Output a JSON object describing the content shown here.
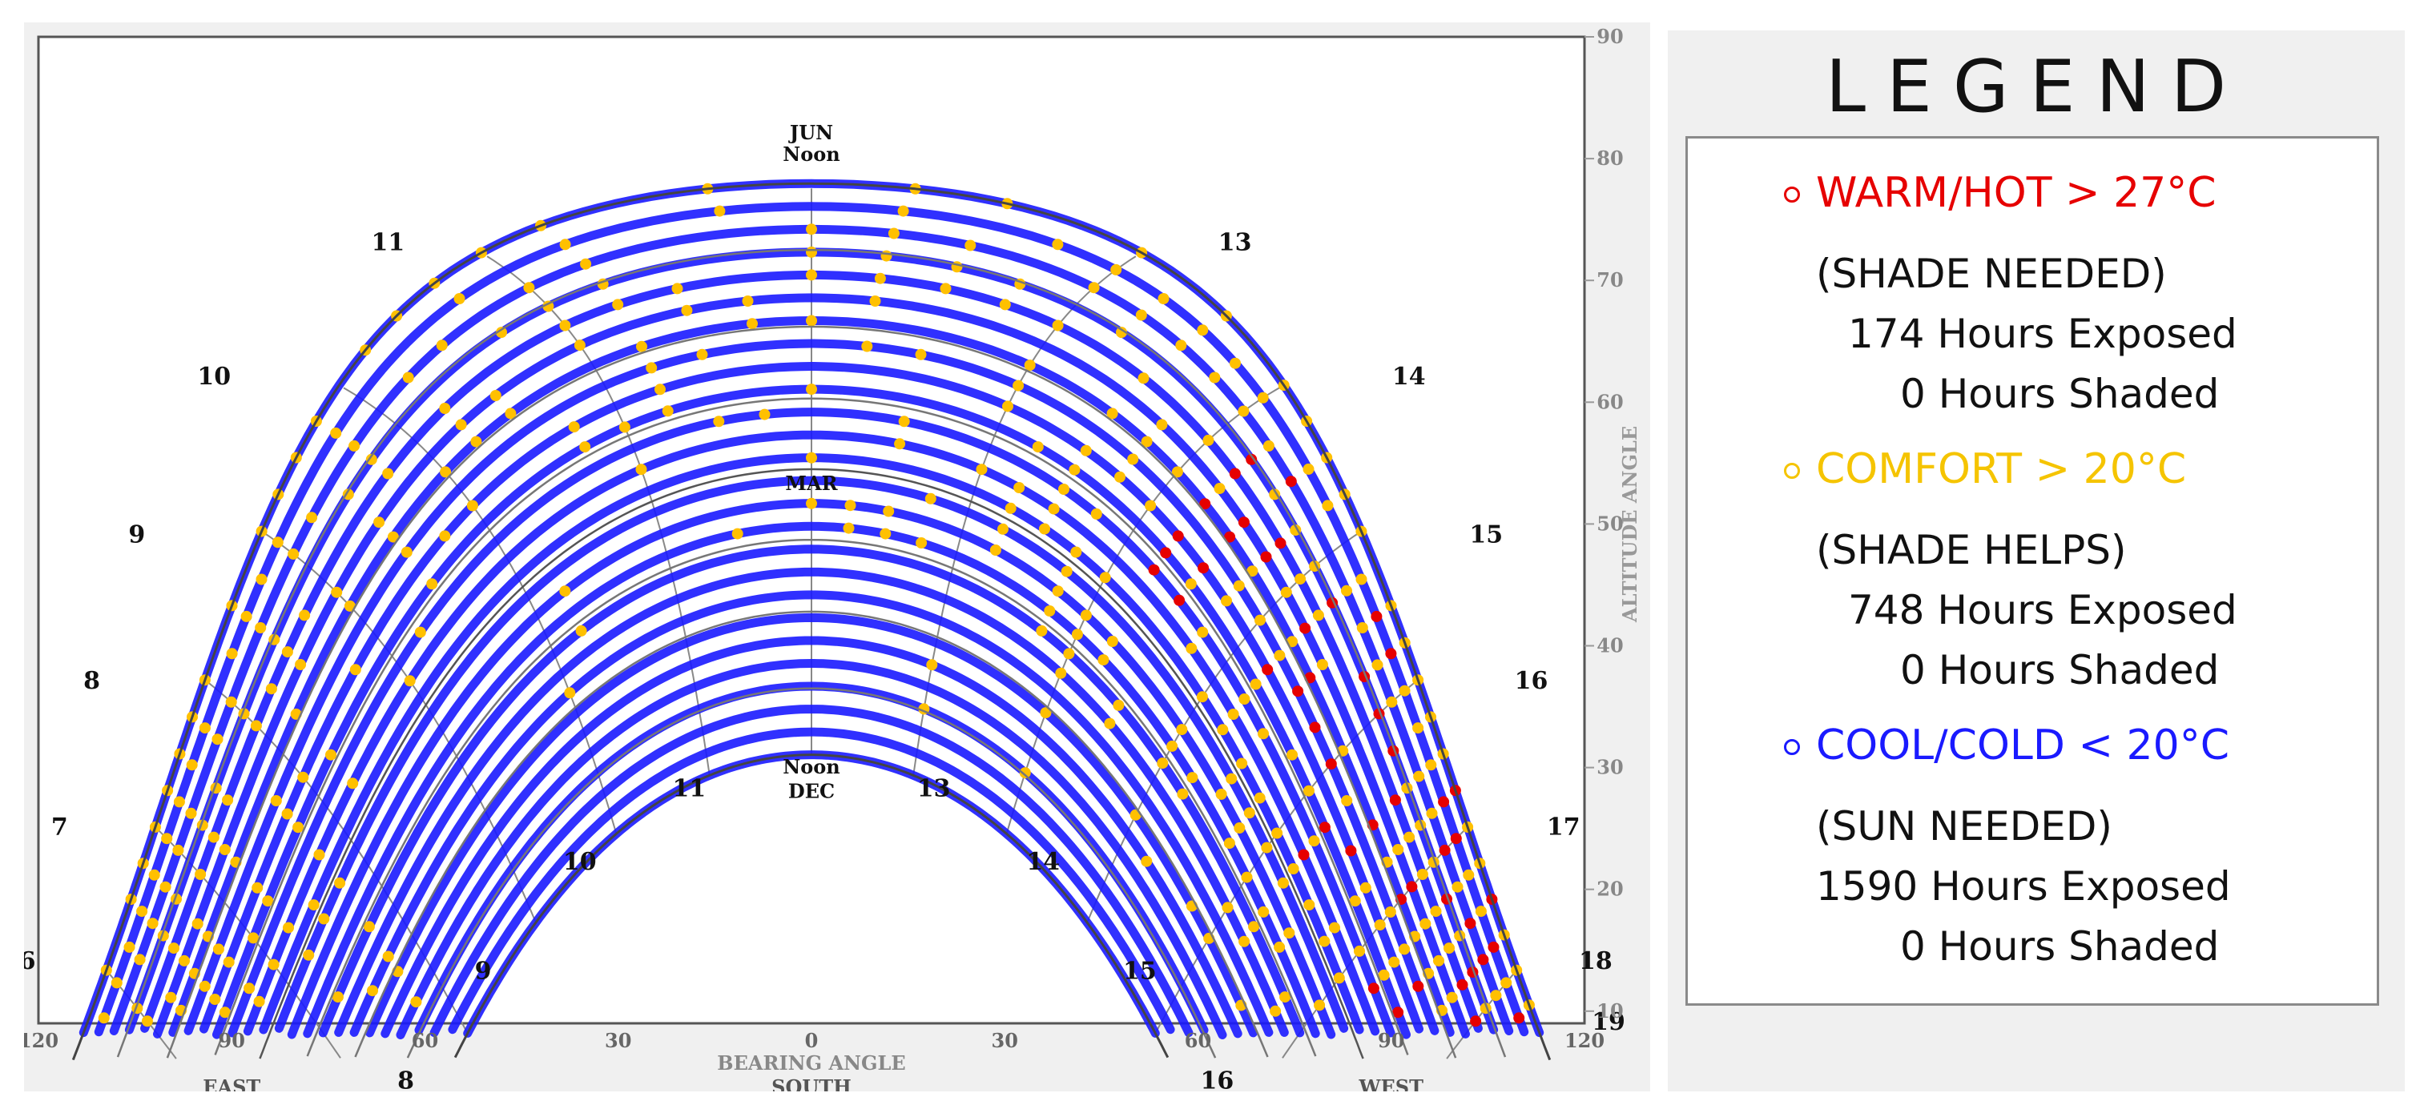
{
  "chart_data": {
    "type": "scatter",
    "title": "",
    "xlabel": "BEARING ANGLE",
    "x_sublabel": "SOUTH",
    "ylabel": "ALTITUDE ANGLE",
    "x_ticks": [
      "120",
      "90",
      "60",
      "30",
      "0",
      "30",
      "60",
      "90",
      "120"
    ],
    "x_tick_values": [
      -120,
      -90,
      -60,
      -30,
      0,
      30,
      60,
      90,
      120
    ],
    "y_ticks": [
      "90",
      "80",
      "70",
      "60",
      "50",
      "40",
      "30",
      "20",
      "10"
    ],
    "xlim": [
      -120,
      120
    ],
    "ylim": [
      9,
      90
    ],
    "direction_labels": {
      "east": "EAST",
      "west": "WEST"
    },
    "date_labels": {
      "jun": "JUN",
      "jun_noon": "Noon",
      "mar": "MAR",
      "dec_noon": "Noon",
      "dec": "DEC"
    },
    "season_curves": [
      {
        "name": "JUN",
        "noon_altitude": 79,
        "sunrise_bearing": -122
      },
      {
        "name": "MAR",
        "noon_altitude": 55,
        "sunrise_bearing": -97
      },
      {
        "name": "DEC",
        "noon_altitude": 31,
        "sunrise_bearing": -64
      }
    ],
    "hour_lines": [
      {
        "hour": "6",
        "jun_pt": [
          -118,
          14
        ],
        "dec_pt": null
      },
      {
        "hour": "7",
        "jun_pt": [
          -113,
          25
        ],
        "dec_pt": null
      },
      {
        "hour": "8",
        "jun_pt": [
          -108,
          37
        ],
        "dec_pt": [
          -58,
          6
        ]
      },
      {
        "hour": "9",
        "jun_pt": [
          -101,
          49
        ],
        "dec_pt": [
          -46,
          15
        ]
      },
      {
        "hour": "10",
        "jun_pt": [
          -89,
          62
        ],
        "dec_pt": [
          -31,
          24
        ]
      },
      {
        "hour": "11",
        "jun_pt": [
          -62,
          73
        ],
        "dec_pt": [
          -14,
          30
        ]
      },
      {
        "hour": "13",
        "jun_pt": [
          62,
          73
        ],
        "dec_pt": [
          14,
          30
        ]
      },
      {
        "hour": "14",
        "jun_pt": [
          89,
          62
        ],
        "dec_pt": [
          31,
          24
        ]
      },
      {
        "hour": "15",
        "jun_pt": [
          101,
          49
        ],
        "dec_pt": [
          46,
          15
        ]
      },
      {
        "hour": "16",
        "jun_pt": [
          108,
          37
        ],
        "dec_pt": [
          58,
          6
        ]
      },
      {
        "hour": "17",
        "jun_pt": [
          113,
          25
        ],
        "dec_pt": null
      },
      {
        "hour": "18",
        "jun_pt": [
          118,
          14
        ],
        "dec_pt": null
      },
      {
        "hour": "19",
        "jun_pt": [
          120,
          9
        ],
        "dec_pt": null
      }
    ],
    "point_categories": [
      {
        "name": "WARM/HOT > 27°C",
        "color": "#e60000"
      },
      {
        "name": "COMFORT > 20°C",
        "color": "#ffc000"
      },
      {
        "name": "COOL/COLD < 20°C",
        "color": "#1a1aff"
      }
    ],
    "grid": true
  },
  "legend": {
    "title": "LEGEND",
    "items": [
      {
        "label": "WARM/HOT  > 27°C",
        "color": "#e60000",
        "note": "(SHADE NEEDED)",
        "exposed": "174 Hours Exposed",
        "shaded": "0 Hours Shaded"
      },
      {
        "label": "COMFORT  > 20°C",
        "color": "#f5c400",
        "note": "(SHADE HELPS)",
        "exposed": "748 Hours Exposed",
        "shaded": "0 Hours Shaded"
      },
      {
        "label": "COOL/COLD  < 20°C",
        "color": "#1a1aff",
        "note": "(SUN NEEDED)",
        "exposed": "1590 Hours Exposed",
        "shaded": "0 Hours Shaded"
      }
    ]
  }
}
